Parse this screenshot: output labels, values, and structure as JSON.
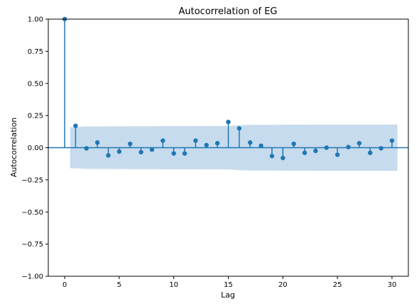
{
  "chart_data": {
    "type": "stem",
    "title": "Autocorrelation of EG",
    "xlabel": "Lag",
    "ylabel": "Autocorrelation",
    "xlim": [
      -1.5,
      31.5
    ],
    "ylim": [
      -1.0,
      1.0
    ],
    "xticks": [
      0,
      5,
      10,
      15,
      20,
      25,
      30
    ],
    "xtick_labels": [
      "0",
      "5",
      "10",
      "15",
      "20",
      "25",
      "30"
    ],
    "yticks": [
      1.0,
      0.75,
      0.5,
      0.25,
      0.0,
      -0.25,
      -0.5,
      -0.75,
      -1.0
    ],
    "ytick_labels": [
      "1.00",
      "0.75",
      "0.50",
      "0.25",
      "0.00",
      "−0.25",
      "−0.50",
      "−0.75",
      "−1.00"
    ],
    "grid": false,
    "series": [
      {
        "lags": [
          0,
          1,
          2,
          3,
          4,
          5,
          6,
          7,
          8,
          9,
          10,
          11,
          12,
          13,
          14,
          15,
          16,
          17,
          18,
          19,
          20,
          21,
          22,
          23,
          24,
          25,
          26,
          27,
          28,
          29,
          30
        ],
        "values": [
          1.0,
          0.17,
          -0.005,
          0.04,
          -0.06,
          -0.03,
          0.03,
          -0.035,
          -0.015,
          0.055,
          -0.045,
          -0.045,
          0.055,
          0.02,
          0.035,
          0.2,
          0.15,
          0.04,
          0.015,
          -0.065,
          -0.08,
          0.03,
          -0.04,
          -0.025,
          0.0,
          -0.055,
          0.005,
          0.035,
          -0.04,
          -0.005,
          0.055
        ]
      }
    ],
    "confidence_band": {
      "lags": [
        0.5,
        1,
        2,
        3,
        4,
        5,
        6,
        7,
        8,
        9,
        10,
        11,
        12,
        13,
        14,
        15,
        16,
        17,
        18,
        19,
        20,
        21,
        22,
        23,
        24,
        25,
        26,
        27,
        28,
        29,
        30,
        30.5
      ],
      "upper": [
        0.16,
        0.16,
        0.165,
        0.165,
        0.166,
        0.166,
        0.167,
        0.167,
        0.167,
        0.168,
        0.168,
        0.168,
        0.168,
        0.169,
        0.169,
        0.169,
        0.175,
        0.178,
        0.178,
        0.178,
        0.179,
        0.179,
        0.179,
        0.18,
        0.18,
        0.18,
        0.18,
        0.18,
        0.18,
        0.18,
        0.18,
        0.18
      ]
    },
    "colors": {
      "stem": "#1f77b4",
      "band": "#c6dbed",
      "axis": "#000000"
    }
  }
}
